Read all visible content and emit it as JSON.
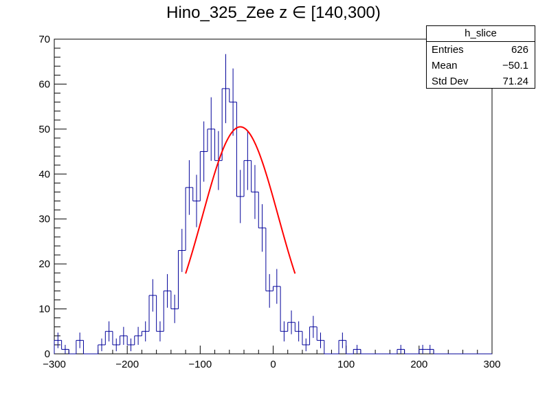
{
  "chart_data": {
    "type": "histogram",
    "title": "Hino_325_Zee z  ∈ [140,300)",
    "xlim": [
      -300,
      300
    ],
    "ylim": [
      0,
      70
    ],
    "bin_width": 10,
    "x_ticks": [
      "−300",
      "−200",
      "−100",
      "0",
      "100",
      "200",
      "300"
    ],
    "x_tick_values": [
      -300,
      -200,
      -100,
      0,
      100,
      200,
      300
    ],
    "y_ticks": [
      "0",
      "10",
      "20",
      "30",
      "40",
      "50",
      "60",
      "70"
    ],
    "y_tick_values": [
      0,
      10,
      20,
      30,
      40,
      50,
      60,
      70
    ],
    "bin_lows": [
      -300,
      -290,
      -280,
      -270,
      -260,
      -250,
      -240,
      -230,
      -220,
      -210,
      -200,
      -190,
      -180,
      -170,
      -160,
      -150,
      -140,
      -130,
      -120,
      -110,
      -100,
      -90,
      -80,
      -70,
      -60,
      -50,
      -40,
      -30,
      -20,
      -10,
      0,
      10,
      20,
      30,
      40,
      50,
      60,
      70,
      80,
      90,
      100,
      110,
      120,
      130,
      140,
      150,
      160,
      170,
      180,
      190,
      200,
      210,
      220,
      230,
      240,
      250,
      260,
      270,
      280,
      290
    ],
    "counts": [
      3,
      1,
      0,
      3,
      0,
      0,
      2,
      5,
      2,
      4,
      2,
      4,
      5,
      13,
      5,
      14,
      10,
      23,
      37,
      34,
      45,
      50,
      43,
      59,
      56,
      35,
      43,
      36,
      28,
      14,
      15,
      5,
      7,
      5,
      2,
      6,
      3,
      0,
      0,
      3,
      0,
      1,
      0,
      0,
      0,
      0,
      0,
      1,
      0,
      0,
      1,
      1,
      0,
      0,
      0,
      0,
      0,
      0,
      0,
      0
    ],
    "fit": {
      "function": "gaussian",
      "constant": 50.5,
      "mean": -45,
      "sigma": 52,
      "range": [
        -120,
        30
      ],
      "color": "#ff0000"
    },
    "hist_color": "#000099",
    "legend": "top-right",
    "grid": false
  },
  "stats": {
    "name": "h_slice",
    "entries_label": "Entries",
    "entries": "626",
    "mean_label": "Mean",
    "mean": "−50.1",
    "std_label": "Std Dev",
    "std": "71.24"
  }
}
